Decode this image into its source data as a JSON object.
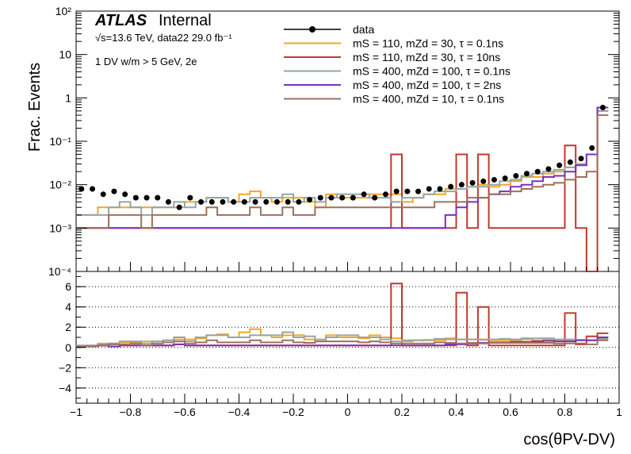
{
  "chart_data": {
    "type": "line",
    "atlas_label": "ATLAS",
    "atlas_status": "Internal",
    "energy_label": "√s=13.6 TeV, data22 29.0 fb⁻¹",
    "selection_label": "1 DV w/m > 5 GeV, 2e",
    "ylabel": "Frac. Events",
    "xlabel": "cos(θPV-DV)",
    "xlim": [
      -1,
      1
    ],
    "ylim": [
      0.0001,
      100
    ],
    "ratio_ylim": [
      -5.5,
      7.5
    ],
    "x_ticks": [
      "−1",
      "−0.8",
      "−0.6",
      "−0.4",
      "−0.2",
      "0",
      "0.2",
      "0.4",
      "0.6",
      "0.8",
      "1"
    ],
    "y_ticks": [
      "10⁻⁴",
      "10⁻³",
      "10⁻²",
      "10⁻¹",
      "1",
      "10",
      "10²"
    ],
    "ratio_ticks": [
      "−4",
      "−2",
      "0",
      "2",
      "4",
      "6"
    ],
    "legend": [
      {
        "label": "data",
        "color": "#000000",
        "style": "marker"
      },
      {
        "label": "mS = 110, mZd = 30, τ = 0.1ns",
        "color": "#f5a623",
        "style": "line"
      },
      {
        "label": "mS = 110, mZd = 30, τ = 10ns",
        "color": "#c0392b",
        "style": "line"
      },
      {
        "label": "mS = 400, mZd = 100, τ = 0.1ns",
        "color": "#95a5a6",
        "style": "line"
      },
      {
        "label": "mS = 400, mZd = 100, τ = 2ns",
        "color": "#7b2fbf",
        "style": "line"
      },
      {
        "label": "mS = 400, mZd = 10, τ = 0.1ns",
        "color": "#a0705a",
        "style": "line"
      }
    ],
    "bin_edges_start": -1,
    "bin_width": 0.04,
    "data": [
      0.008,
      0.008,
      0.006,
      0.007,
      0.006,
      0.005,
      0.005,
      0.005,
      0.004,
      0.003,
      0.005,
      0.004,
      0.004,
      0.004,
      0.004,
      0.004,
      0.004,
      0.004,
      0.004,
      0.004,
      0.004,
      0.0045,
      0.005,
      0.005,
      0.005,
      0.005,
      0.006,
      0.005,
      0.006,
      0.007,
      0.007,
      0.007,
      0.008,
      0.008,
      0.009,
      0.01,
      0.011,
      0.012,
      0.013,
      0.014,
      0.016,
      0.018,
      0.02,
      0.023,
      0.028,
      0.033,
      0.04,
      0.07,
      0.6
    ],
    "series": [
      {
        "name": "mS = 110, mZd = 30, τ = 0.1ns",
        "color": "#f5a623",
        "values": [
          0.002,
          0.002,
          0.003,
          0.003,
          0.003,
          0.003,
          0.003,
          0.003,
          0.003,
          0.003,
          0.004,
          0.004,
          0.005,
          0.005,
          0.004,
          0.006,
          0.007,
          0.005,
          0.004,
          0.005,
          0.005,
          0.004,
          0.003,
          0.006,
          0.005,
          0.005,
          0.005,
          0.006,
          0.006,
          0.006,
          0.004,
          0.005,
          0.006,
          0.006,
          0.008,
          0.008,
          0.009,
          0.01,
          0.009,
          0.01,
          0.012,
          0.015,
          0.015,
          0.018,
          0.02,
          0.025,
          0.03,
          0.05,
          0.6
        ]
      },
      {
        "name": "mS = 110, mZd = 30, τ = 10ns",
        "color": "#c0392b",
        "values": [
          0.001,
          0.001,
          0.001,
          0.001,
          0.001,
          0.001,
          0.001,
          0.001,
          0.001,
          0.001,
          0.001,
          0.001,
          0.001,
          0.001,
          0.001,
          0.001,
          0.001,
          0.001,
          0.001,
          0.001,
          0.001,
          0.001,
          0.001,
          0.001,
          0.001,
          0.001,
          0.001,
          0.001,
          0.001,
          0.05,
          0.001,
          0.001,
          0.001,
          0.001,
          0.001,
          0.05,
          0.001,
          0.05,
          0.001,
          0.001,
          0.001,
          0.001,
          0.001,
          0.001,
          0.001,
          0.08,
          0.001,
          0.0001,
          0.5
        ]
      },
      {
        "name": "mS = 400, mZd = 100, τ = 0.1ns",
        "color": "#95a5a6",
        "values": [
          0.002,
          0.002,
          0.002,
          0.003,
          0.004,
          0.003,
          0.002,
          0.003,
          0.003,
          0.004,
          0.003,
          0.004,
          0.005,
          0.005,
          0.004,
          0.004,
          0.005,
          0.005,
          0.005,
          0.006,
          0.004,
          0.005,
          0.004,
          0.005,
          0.006,
          0.006,
          0.006,
          0.005,
          0.005,
          0.004,
          0.005,
          0.005,
          0.006,
          0.007,
          0.007,
          0.008,
          0.009,
          0.009,
          0.01,
          0.012,
          0.013,
          0.016,
          0.018,
          0.02,
          0.022,
          0.025,
          0.03,
          0.05,
          0.5
        ]
      },
      {
        "name": "mS = 400, mZd = 100, τ = 2ns",
        "color": "#7b2fbf",
        "values": [
          0.001,
          0.001,
          0.001,
          0.001,
          0.001,
          0.001,
          0.001,
          0.001,
          0.001,
          0.001,
          0.001,
          0.001,
          0.001,
          0.001,
          0.001,
          0.001,
          0.001,
          0.001,
          0.001,
          0.001,
          0.001,
          0.001,
          0.001,
          0.001,
          0.001,
          0.001,
          0.001,
          0.001,
          0.001,
          0.001,
          0.001,
          0.001,
          0.001,
          0.001,
          0.002,
          0.003,
          0.004,
          0.005,
          0.006,
          0.007,
          0.009,
          0.01,
          0.012,
          0.015,
          0.016,
          0.02,
          0.028,
          0.05,
          0.6
        ]
      },
      {
        "name": "mS = 400, mZd = 10, τ = 0.1ns",
        "color": "#a0705a",
        "values": [
          0.001,
          0.001,
          0.001,
          0.002,
          0.002,
          0.002,
          0.001,
          0.002,
          0.002,
          0.002,
          0.002,
          0.002,
          0.003,
          0.002,
          0.002,
          0.002,
          0.003,
          0.002,
          0.002,
          0.003,
          0.002,
          0.002,
          0.003,
          0.003,
          0.003,
          0.003,
          0.003,
          0.003,
          0.003,
          0.003,
          0.003,
          0.003,
          0.003,
          0.004,
          0.004,
          0.004,
          0.005,
          0.005,
          0.006,
          0.006,
          0.007,
          0.008,
          0.009,
          0.01,
          0.011,
          0.013,
          0.015,
          0.02,
          0.4
        ]
      }
    ],
    "ratio_series": [
      {
        "name": "mS = 110, mZd = 30, τ = 0.1ns",
        "color": "#f5a623",
        "values": [
          0.1,
          0.2,
          0.4,
          0.4,
          0.5,
          0.5,
          0.6,
          0.6,
          0.7,
          0.8,
          0.8,
          0.9,
          1.2,
          1.3,
          1.0,
          1.5,
          1.8,
          1.2,
          1.0,
          1.2,
          1.2,
          0.8,
          0.6,
          1.2,
          1.0,
          1.0,
          0.9,
          1.2,
          1.0,
          0.9,
          0.6,
          0.7,
          0.7,
          0.7,
          0.9,
          0.8,
          0.8,
          0.8,
          0.7,
          0.7,
          0.7,
          0.8,
          0.7,
          0.8,
          0.7,
          0.7,
          0.75,
          0.7,
          1.0
        ]
      },
      {
        "name": "mS = 110, mZd = 30, τ = 10ns",
        "color": "#c0392b",
        "values": [
          0.1,
          0.1,
          0.2,
          0.1,
          0.2,
          0.2,
          0.2,
          0.2,
          0.2,
          0.3,
          0.2,
          0.2,
          0.2,
          0.2,
          0.2,
          0.2,
          0.2,
          0.2,
          0.2,
          0.2,
          0.2,
          0.2,
          0.2,
          0.2,
          0.2,
          0.2,
          0.2,
          0.2,
          0.2,
          6.3,
          0.2,
          0.2,
          0.2,
          0.2,
          0.2,
          5.4,
          0.2,
          4.0,
          0.2,
          0.2,
          0.2,
          0.2,
          0.2,
          0.2,
          0.2,
          3.4,
          0.3,
          1.1,
          1.4
        ]
      },
      {
        "name": "mS = 400, mZd = 100, τ = 0.1ns",
        "color": "#95a5a6",
        "values": [
          0.2,
          0.2,
          0.3,
          0.4,
          0.6,
          0.6,
          0.4,
          0.6,
          0.7,
          1.0,
          0.6,
          1.0,
          1.2,
          1.2,
          1.0,
          1.0,
          1.2,
          1.2,
          1.2,
          1.5,
          1.0,
          1.1,
          0.8,
          1.0,
          1.2,
          1.2,
          1.0,
          1.0,
          0.8,
          0.6,
          0.7,
          0.7,
          0.75,
          0.85,
          0.8,
          0.8,
          0.8,
          0.75,
          0.8,
          0.85,
          0.8,
          0.9,
          0.9,
          0.9,
          0.8,
          0.8,
          0.75,
          0.7,
          0.85
        ]
      },
      {
        "name": "mS = 400, mZd = 100, τ = 2ns",
        "color": "#7b2fbf",
        "values": [
          0.1,
          0.1,
          0.2,
          0.1,
          0.2,
          0.2,
          0.2,
          0.2,
          0.2,
          0.3,
          0.2,
          0.2,
          0.2,
          0.2,
          0.2,
          0.2,
          0.2,
          0.2,
          0.2,
          0.2,
          0.2,
          0.2,
          0.2,
          0.2,
          0.2,
          0.2,
          0.2,
          0.2,
          0.2,
          0.2,
          0.2,
          0.2,
          0.2,
          0.2,
          0.3,
          0.3,
          0.4,
          0.45,
          0.5,
          0.5,
          0.55,
          0.55,
          0.6,
          0.65,
          0.6,
          0.6,
          0.7,
          0.7,
          1.0
        ]
      },
      {
        "name": "mS = 400, mZd = 10, τ = 0.1ns",
        "color": "#a0705a",
        "values": [
          0.1,
          0.1,
          0.2,
          0.3,
          0.3,
          0.4,
          0.2,
          0.4,
          0.5,
          0.6,
          0.4,
          0.5,
          0.7,
          0.5,
          0.5,
          0.5,
          0.7,
          0.5,
          0.5,
          0.7,
          0.5,
          0.45,
          0.6,
          0.6,
          0.6,
          0.6,
          0.5,
          0.6,
          0.5,
          0.4,
          0.4,
          0.4,
          0.4,
          0.5,
          0.45,
          0.4,
          0.45,
          0.4,
          0.45,
          0.45,
          0.45,
          0.45,
          0.45,
          0.45,
          0.4,
          0.4,
          0.4,
          0.3,
          0.7
        ]
      }
    ]
  }
}
